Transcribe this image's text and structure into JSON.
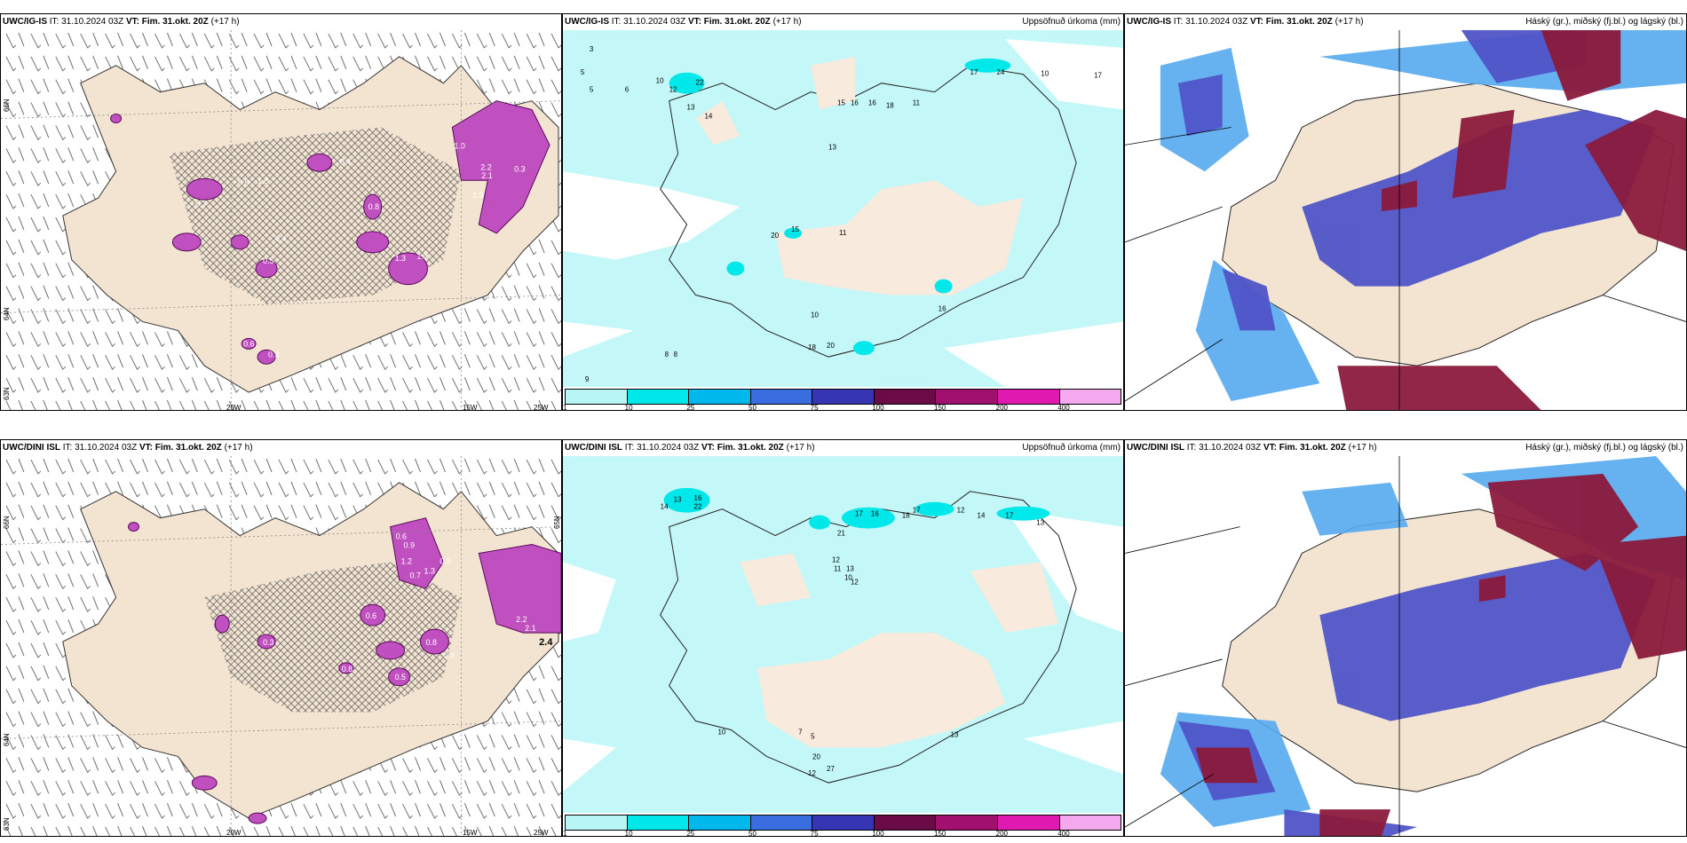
{
  "rows": [
    {
      "left": {
        "model": "UWC/IG-IS",
        "it": "IT: 31.10.2024 03Z",
        "vt_label": "VT: Fim. 31.okt. 20Z",
        "lead": "(+17 h)",
        "lat_labels": [
          "66N",
          "64N",
          "63N"
        ],
        "lon_labels": [
          "20W",
          "15W",
          "25W"
        ]
      },
      "middle": {
        "model": "UWC/IG-IS",
        "it": "IT: 31.10.2024 03Z",
        "vt_label": "VT: Fim. 31.okt. 20Z",
        "lead": "(+17 h)",
        "title": "Uppsöfnuð úrkoma (mm)"
      },
      "right": {
        "model": "UWC/IG-IS",
        "it": "IT: 31.10.2024 03Z",
        "vt_label": "VT: Fim. 31.okt. 20Z",
        "lead": "(+17 h)",
        "title": "Háský (gr.), miðský (fj.bl.) og lágský (bl.)"
      }
    },
    {
      "left": {
        "model": "UWC/DINI ISL",
        "it": "IT: 31.10.2024 03Z",
        "vt_label": "VT: Fim. 31.okt. 20Z",
        "lead": "(+17 h)",
        "lat_labels": [
          "66N",
          "65N",
          "64N",
          "63N"
        ],
        "lon_labels": [
          "20W",
          "15W",
          "25W"
        ]
      },
      "middle": {
        "model": "UWC/DINI ISL",
        "it": "IT: 31.10.2024 03Z",
        "vt_label": "VT: Fim. 31.okt. 20Z",
        "lead": "(+17 h)",
        "title": "Uppsöfnuð úrkoma (mm)"
      },
      "right": {
        "model": "UWC/DINI ISL",
        "it": "IT: 31.10.2024 03Z",
        "vt_label": "VT: Fim. 31.okt. 20Z",
        "lead": "(+17 h)",
        "title": "Háský (gr.), miðský (fj.bl.) og lágský (bl.)"
      }
    }
  ],
  "precip_scale": {
    "labels": [
      "1",
      "10",
      "25",
      "50",
      "75",
      "100",
      "150",
      "200",
      "400"
    ],
    "colors": [
      "#b8f6f6",
      "#00e8ea",
      "#00b8ec",
      "#3a6ee0",
      "#3636b4",
      "#6a0a46",
      "#a0106c",
      "#e01ab0",
      "#f4a8ee"
    ]
  },
  "colors": {
    "land": "#f3e4d2",
    "sea_precip": "#c4f8f8",
    "ice_purple": "#c050c0",
    "cloud_high": "#8b1a3c",
    "cloud_mid": "#5055c8",
    "cloud_low": "#55aaf0"
  },
  "precip_numbers_top": [
    "3",
    "5",
    "5",
    "6",
    "10",
    "12",
    "22",
    "13",
    "14",
    "15",
    "16",
    "16",
    "18",
    "11",
    "13",
    "17",
    "24",
    "10",
    "17",
    "20",
    "15",
    "11",
    "10",
    "18",
    "20",
    "16",
    "9",
    "8",
    "8"
  ],
  "precip_numbers_bottom": [
    "14",
    "13",
    "16",
    "22",
    "17",
    "16",
    "21",
    "18",
    "17",
    "12",
    "14",
    "17",
    "13",
    "12",
    "11",
    "13",
    "10",
    "12",
    "20",
    "12",
    "27",
    "13",
    "10",
    "7",
    "5"
  ],
  "ice_values_top": [
    "1.0",
    "0.9",
    "1.0",
    "0.7",
    "0.4",
    "1.3",
    "1.3",
    "0.8",
    "2.2",
    "2.1",
    "0.3",
    "1.9",
    "0.4",
    "0.5",
    "0.6",
    "0.3"
  ],
  "ice_values_bottom": [
    "0.6",
    "0.9",
    "1.2",
    "0.7",
    "0.9",
    "1.3",
    "0.8",
    "0.6",
    "0.5",
    "0.4",
    "2.2",
    "2.1",
    "2.4",
    "0.3",
    "0.8"
  ]
}
